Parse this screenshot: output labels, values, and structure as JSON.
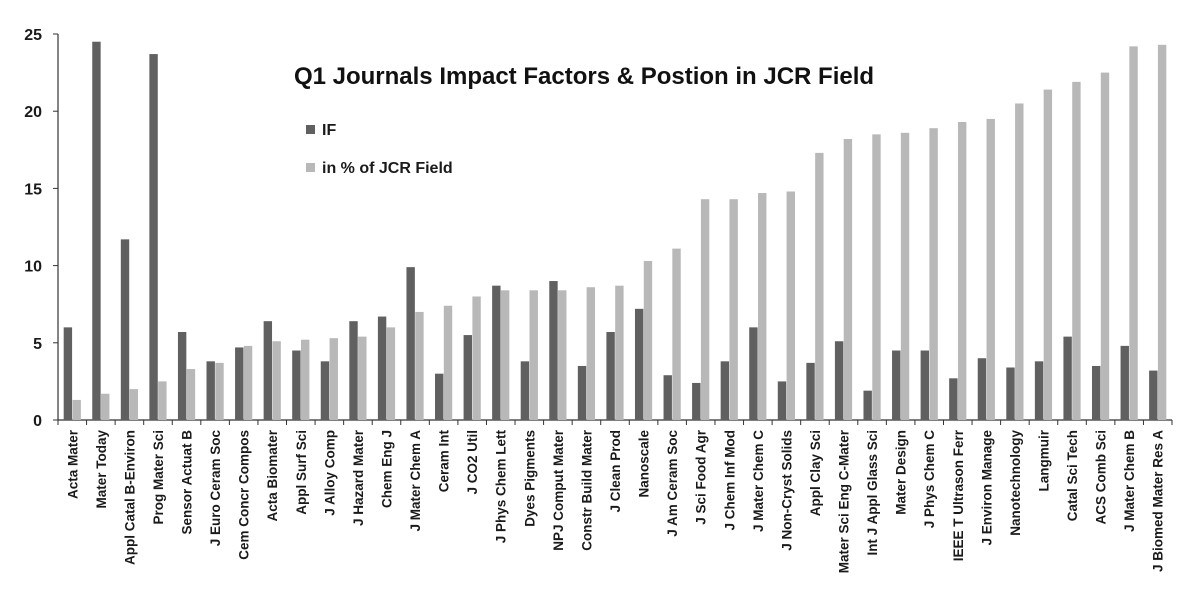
{
  "chart_data": {
    "type": "bar",
    "title": "Q1 Journals Impact Factors & Postion in JCR Field",
    "xlabel": "",
    "ylabel": "",
    "ylim": [
      0,
      25
    ],
    "yticks": [
      "0",
      "5",
      "10",
      "15",
      "20",
      "25"
    ],
    "grid": false,
    "legend": "top-left",
    "categories": [
      "Acta Mater",
      "Mater Today",
      "Appl Catal B-Environ",
      "Prog Mater Sci",
      "Sensor Actuat B",
      "J Euro Ceram Soc",
      "Cem Concr Compos",
      "Acta Biomater",
      "Appl Surf Sci",
      "J Alloy Comp",
      "J Hazard Mater",
      "Chem Eng J",
      "J Mater Chem A",
      "Ceram Int",
      "J CO2 Util",
      "J Phys Chem Lett",
      "Dyes Pigments",
      "NPJ Comput Mater",
      "Constr Build Mater",
      "J Clean Prod",
      "Nanoscale",
      "J Am Ceram Soc",
      "J Sci Food Agr",
      "J Chem Inf Mod",
      "J Mater Chem C",
      "J Non-Cryst Solids",
      "Appl Clay Sci",
      "Mater Sci Eng C-Mater",
      "Int J Appl Glass Sci",
      "Mater Design",
      "J Phys Chem C",
      "IEEE T Ultrason Ferr",
      "J Environ Manage",
      "Nanotechnology",
      "Langmuir",
      "Catal Sci Tech",
      "ACS Comb Sci",
      "J Mater Chem B",
      "J Biomed Mater Res A"
    ],
    "series": [
      {
        "name": "IF",
        "color": "#606060",
        "values": [
          6.0,
          24.5,
          11.7,
          23.7,
          5.7,
          3.8,
          4.7,
          6.4,
          4.5,
          3.8,
          6.4,
          6.7,
          9.9,
          3.0,
          5.5,
          8.7,
          3.8,
          9.0,
          3.5,
          5.7,
          7.2,
          2.9,
          2.4,
          3.8,
          6.0,
          2.5,
          3.7,
          5.1,
          1.9,
          4.5,
          4.5,
          2.7,
          4.0,
          3.4,
          3.8,
          5.4,
          3.5,
          4.8,
          3.2
        ]
      },
      {
        "name": "in % of JCR Field",
        "color": "#b8b8b8",
        "values": [
          1.3,
          1.7,
          2.0,
          2.5,
          3.3,
          3.7,
          4.8,
          5.1,
          5.2,
          5.3,
          5.4,
          6.0,
          7.0,
          7.4,
          8.0,
          8.4,
          8.4,
          8.4,
          8.6,
          8.7,
          10.3,
          11.1,
          14.3,
          14.3,
          14.7,
          14.8,
          17.3,
          18.2,
          18.5,
          18.6,
          18.9,
          19.3,
          19.5,
          20.5,
          21.4,
          21.9,
          22.5,
          24.2,
          24.3
        ]
      }
    ]
  }
}
